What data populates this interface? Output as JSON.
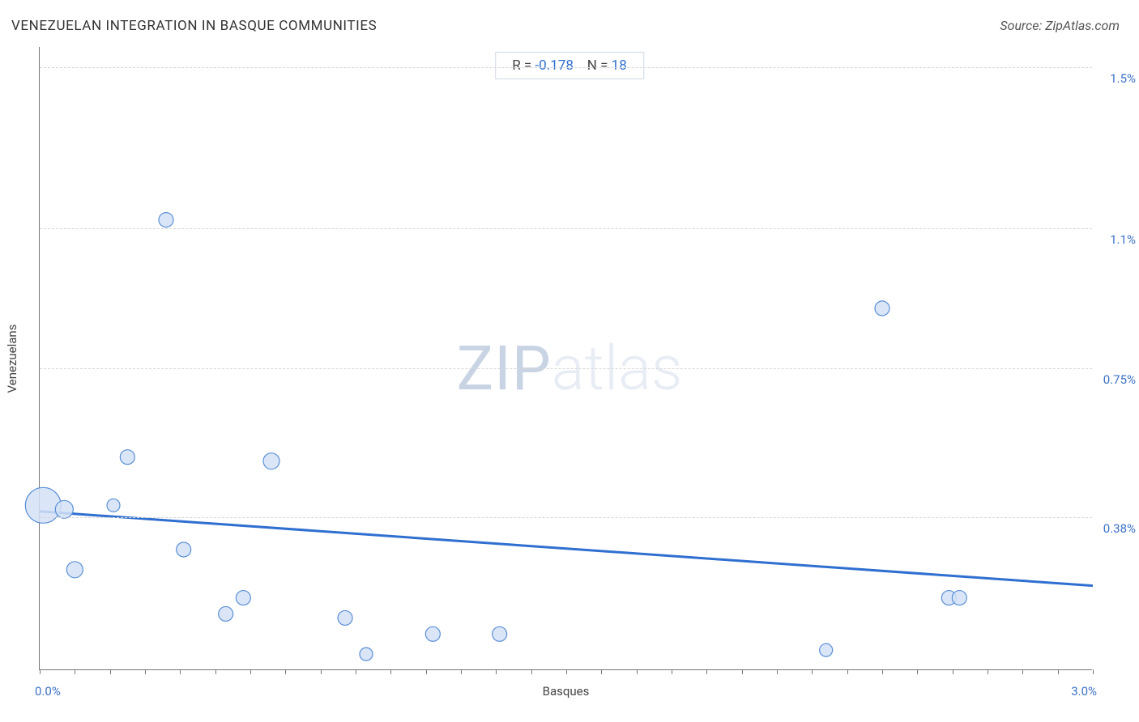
{
  "title": "VENEZUELAN INTEGRATION IN BASQUE COMMUNITIES",
  "source_label": "Source: ZipAtlas.com",
  "watermark": {
    "part1": "ZIP",
    "part2": "atlas"
  },
  "stats": {
    "r_label": "R =",
    "r_value": "-0.178",
    "n_label": "N =",
    "n_value": "18"
  },
  "chart": {
    "type": "scatter",
    "x_axis": {
      "title": "Basques",
      "min": 0.0,
      "max": 3.0,
      "min_label": "0.0%",
      "max_label": "3.0%",
      "tick_interval_minor": 0.1
    },
    "y_axis": {
      "title": "Venezuelans",
      "min": 0.0,
      "max": 1.55,
      "gridlines": [
        0.38,
        0.75,
        1.1,
        1.5
      ],
      "gridline_labels": [
        "0.38%",
        "0.75%",
        "1.1%",
        "1.5%"
      ]
    },
    "regression_line": {
      "x1": 0.0,
      "y1": 0.395,
      "x2": 3.0,
      "y2": 0.21,
      "color": "#2f6fd0",
      "width": 3
    },
    "point_style": {
      "fill": "#d3e2f7",
      "stroke": "#5a8fd6",
      "stroke_width": 1.2,
      "opacity": 0.85
    },
    "points": [
      {
        "x": 0.01,
        "y": 0.41,
        "r": 22
      },
      {
        "x": 0.07,
        "y": 0.4,
        "r": 11
      },
      {
        "x": 0.1,
        "y": 0.25,
        "r": 10
      },
      {
        "x": 0.21,
        "y": 0.41,
        "r": 8
      },
      {
        "x": 0.25,
        "y": 0.53,
        "r": 9
      },
      {
        "x": 0.36,
        "y": 1.12,
        "r": 9
      },
      {
        "x": 0.41,
        "y": 0.3,
        "r": 9
      },
      {
        "x": 0.53,
        "y": 0.14,
        "r": 9
      },
      {
        "x": 0.58,
        "y": 0.18,
        "r": 9
      },
      {
        "x": 0.66,
        "y": 0.52,
        "r": 10
      },
      {
        "x": 0.87,
        "y": 0.13,
        "r": 9
      },
      {
        "x": 0.93,
        "y": 0.04,
        "r": 8
      },
      {
        "x": 1.12,
        "y": 0.09,
        "r": 9
      },
      {
        "x": 1.31,
        "y": 0.09,
        "r": 9
      },
      {
        "x": 2.24,
        "y": 0.05,
        "r": 8
      },
      {
        "x": 2.4,
        "y": 0.9,
        "r": 9
      },
      {
        "x": 2.59,
        "y": 0.18,
        "r": 9
      },
      {
        "x": 2.62,
        "y": 0.18,
        "r": 9
      }
    ],
    "background_color": "#ffffff",
    "grid_color": "#d7d7d7",
    "axis_color": "#777777",
    "tick_label_color": "#3b71c6",
    "axis_title_color": "#444444",
    "title_color": "#333333",
    "title_fontsize": 17,
    "axis_title_fontsize": 15,
    "tick_label_fontsize": 15
  }
}
